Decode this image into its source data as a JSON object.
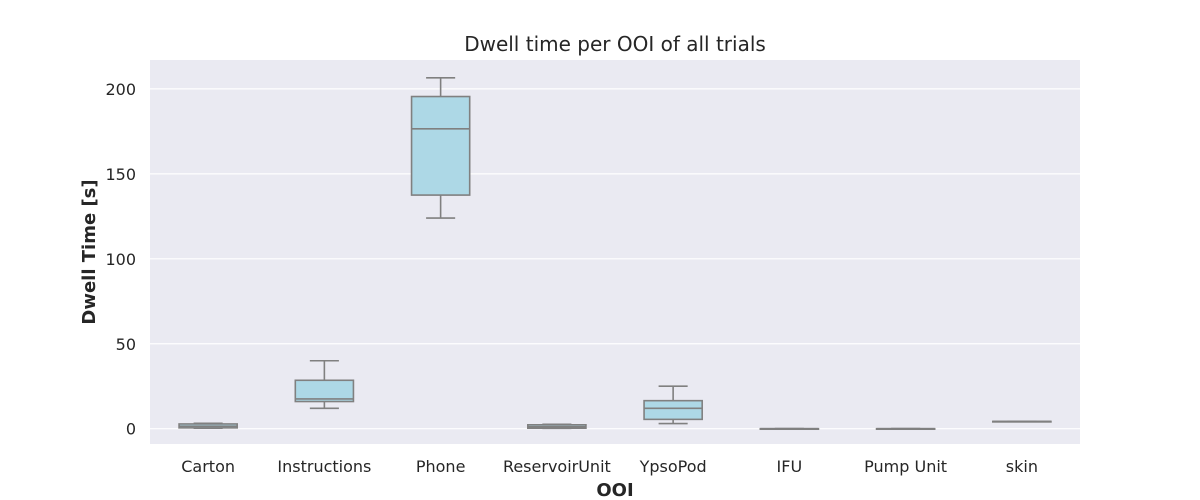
{
  "chart_data": {
    "type": "boxplot",
    "title": "Dwell time per OOI of all trials",
    "xlabel": "OOI",
    "ylabel": "Dwell Time [s]",
    "ylim": [
      -9,
      217
    ],
    "yticks": [
      0,
      50,
      100,
      150,
      200
    ],
    "grid": true,
    "colors": {
      "box_fill": "#add8e6",
      "box_stroke": "#808080",
      "plot_bg": "#eaeaf2",
      "grid": "#ffffff"
    },
    "categories": [
      "Carton",
      "Instructions",
      "Phone",
      "ReservoirUnit",
      "YpsoPod",
      "IFU",
      "Pump Unit",
      "skin"
    ],
    "boxes": [
      {
        "category": "Carton",
        "whislo": 0.3,
        "q1": 0.5,
        "med": 1.5,
        "q3": 2.8,
        "whishi": 3.2
      },
      {
        "category": "Instructions",
        "whislo": 12,
        "q1": 16,
        "med": 17.5,
        "q3": 28.5,
        "whishi": 40
      },
      {
        "category": "Phone",
        "whislo": 124,
        "q1": 137.5,
        "med": 176.5,
        "q3": 195.5,
        "whishi": 206.5
      },
      {
        "category": "ReservoirUnit",
        "whislo": 0.2,
        "q1": 0.3,
        "med": 1.2,
        "q3": 2.3,
        "whishi": 2.6
      },
      {
        "category": "YpsoPod",
        "whislo": 3,
        "q1": 5.5,
        "med": 12,
        "q3": 16.5,
        "whishi": 25
      },
      {
        "category": "IFU",
        "whislo": 0,
        "q1": 0,
        "med": 0,
        "q3": 0,
        "whishi": 0
      },
      {
        "category": "Pump Unit",
        "whislo": 0,
        "q1": 0,
        "med": 0,
        "q3": 0,
        "whishi": 0
      },
      {
        "category": "skin",
        "whislo": 4.3,
        "q1": 4.3,
        "med": 4.3,
        "q3": 4.3,
        "whishi": 4.3
      }
    ]
  }
}
